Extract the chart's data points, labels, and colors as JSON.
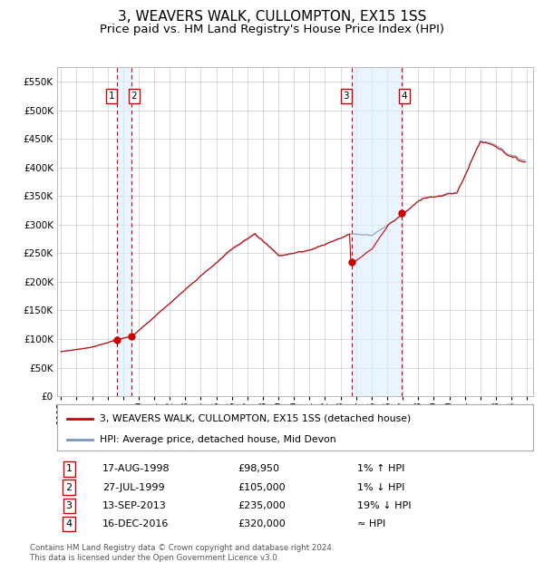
{
  "title": "3, WEAVERS WALK, CULLOMPTON, EX15 1SS",
  "subtitle": "Price paid vs. HM Land Registry's House Price Index (HPI)",
  "legend_line1": "3, WEAVERS WALK, CULLOMPTON, EX15 1SS (detached house)",
  "legend_line2": "HPI: Average price, detached house, Mid Devon",
  "footer_line1": "Contains HM Land Registry data © Crown copyright and database right 2024.",
  "footer_line2": "This data is licensed under the Open Government Licence v3.0.",
  "transactions": [
    {
      "num": 1,
      "date": "17-AUG-1998",
      "price": 98950,
      "rel": "1% ↑ HPI"
    },
    {
      "num": 2,
      "date": "27-JUL-1999",
      "price": 105000,
      "rel": "1% ↓ HPI"
    },
    {
      "num": 3,
      "date": "13-SEP-2013",
      "price": 235000,
      "rel": "19% ↓ HPI"
    },
    {
      "num": 4,
      "date": "16-DEC-2016",
      "price": 320000,
      "rel": "≈ HPI"
    }
  ],
  "hpi_line_color": "#7799bb",
  "price_line_color": "#cc0000",
  "dot_color": "#cc0000",
  "dashed_line_color": "#cc0000",
  "shade_color": "#ddeeff",
  "grid_color": "#cccccc",
  "background_color": "#ffffff",
  "ylim": [
    0,
    575000
  ],
  "yticks": [
    0,
    50000,
    100000,
    150000,
    200000,
    250000,
    300000,
    350000,
    400000,
    450000,
    500000,
    550000
  ],
  "xlim_start": 1994.75,
  "xlim_end": 2025.4,
  "title_fontsize": 11,
  "subtitle_fontsize": 9.5
}
